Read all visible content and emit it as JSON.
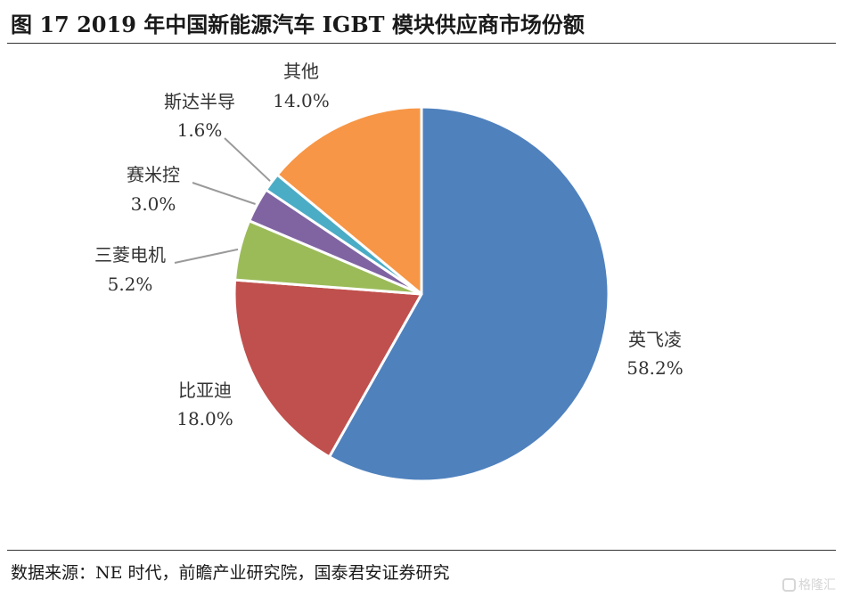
{
  "title": "图 17 2019 年中国新能源汽车 IGBT 模块供应商市场份额",
  "source": "数据来源：NE 时代，前瞻产业研究院，国泰君安证券研究",
  "watermark": "格隆汇",
  "chart_data": {
    "type": "pie",
    "title": "图 17 2019 年中国新能源汽车 IGBT 模块供应商市场份额",
    "slices": [
      {
        "label": "英飞凌",
        "value": 58.2,
        "display": "58.2%",
        "color": "#4f81bd"
      },
      {
        "label": "比亚迪",
        "value": 18.0,
        "display": "18.0%",
        "color": "#c0504d"
      },
      {
        "label": "三菱电机",
        "value": 5.2,
        "display": "5.2%",
        "color": "#9bbb59"
      },
      {
        "label": "赛米控",
        "value": 3.0,
        "display": "3.0%",
        "color": "#8064a2"
      },
      {
        "label": "斯达半导",
        "value": 1.6,
        "display": "1.6%",
        "color": "#4bacc6"
      },
      {
        "label": "其他",
        "value": 14.0,
        "display": "14.0%",
        "color": "#f79646"
      }
    ],
    "start_angle": "12 o'clock",
    "direction": "clockwise",
    "legend": "none",
    "data_labels": "outside with leader lines"
  }
}
